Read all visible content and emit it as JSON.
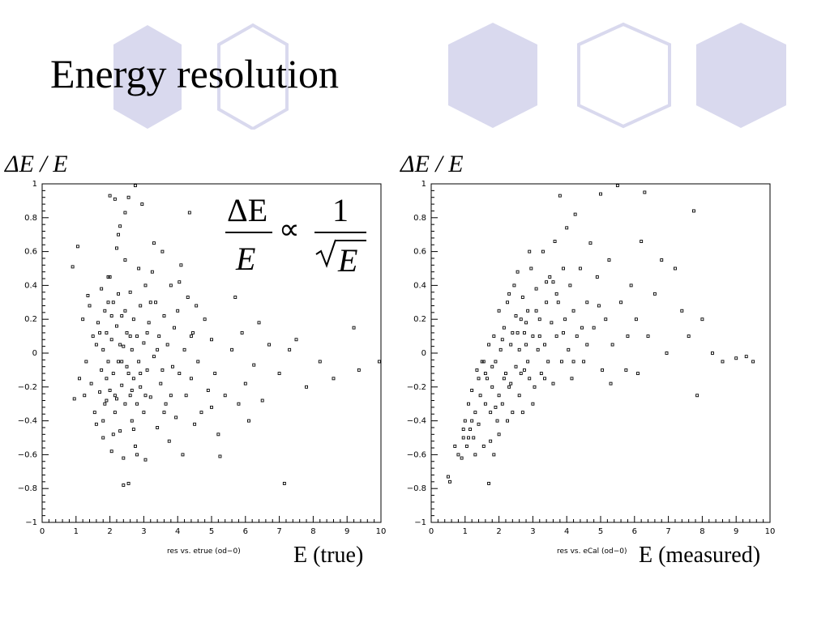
{
  "title": "Energy resolution",
  "formula": {
    "numerator_left": "ΔE",
    "denominator_left": "E",
    "proportional": "∝",
    "numerator_right": "1",
    "denominator_right": "E"
  },
  "colors": {
    "hex_fill": "#d9d9ee",
    "hex_stroke": "#d9d9ee",
    "points": "#000000"
  },
  "chart_data": [
    {
      "type": "scatter",
      "ylabel": "ΔE / E",
      "xlabel": "E (true)",
      "caption": "res vs. etrue (od−0)",
      "xlim": [
        0,
        10
      ],
      "ylim": [
        -1,
        1
      ],
      "xticks": [
        "0",
        "1",
        "2",
        "3",
        "4",
        "5",
        "6",
        "7",
        "8",
        "9",
        "10"
      ],
      "yticks": [
        "1",
        "0.8",
        "0.6",
        "0.4",
        "0.2",
        "0",
        "−0.2",
        "−0.4",
        "−0.6",
        "−0.8",
        "−1"
      ],
      "points": [
        [
          0.9,
          0.51
        ],
        [
          1.05,
          0.63
        ],
        [
          1.2,
          0.2
        ],
        [
          1.1,
          -0.15
        ],
        [
          0.95,
          -0.27
        ],
        [
          1.3,
          -0.05
        ],
        [
          1.35,
          0.34
        ],
        [
          1.4,
          0.28
        ],
        [
          1.45,
          -0.18
        ],
        [
          1.5,
          0.1
        ],
        [
          1.55,
          -0.35
        ],
        [
          1.6,
          -0.42
        ],
        [
          1.65,
          0.18
        ],
        [
          1.7,
          -0.23
        ],
        [
          1.75,
          0.38
        ],
        [
          1.75,
          -0.1
        ],
        [
          1.8,
          0.02
        ],
        [
          1.8,
          -0.5
        ],
        [
          1.85,
          0.25
        ],
        [
          1.85,
          -0.3
        ],
        [
          1.9,
          0.12
        ],
        [
          1.9,
          -0.15
        ],
        [
          1.95,
          -0.05
        ],
        [
          1.95,
          0.45
        ],
        [
          2.0,
          0.93
        ],
        [
          2.0,
          -0.22
        ],
        [
          2.05,
          0.08
        ],
        [
          2.05,
          -0.58
        ],
        [
          2.1,
          0.3
        ],
        [
          2.1,
          -0.12
        ],
        [
          2.15,
          0.91
        ],
        [
          2.15,
          -0.35
        ],
        [
          2.2,
          0.16
        ],
        [
          2.2,
          -0.27
        ],
        [
          2.25,
          -0.05
        ],
        [
          2.25,
          0.7
        ],
        [
          2.3,
          0.75
        ],
        [
          2.3,
          -0.46
        ],
        [
          2.35,
          0.22
        ],
        [
          2.35,
          -0.19
        ],
        [
          2.4,
          0.04
        ],
        [
          2.4,
          -0.62
        ],
        [
          2.45,
          0.55
        ],
        [
          2.45,
          -0.3
        ],
        [
          2.5,
          0.12
        ],
        [
          2.5,
          -0.08
        ],
        [
          2.55,
          0.92
        ],
        [
          2.55,
          -0.77
        ],
        [
          2.6,
          -0.25
        ],
        [
          2.6,
          0.36
        ],
        [
          2.65,
          0.02
        ],
        [
          2.65,
          -0.4
        ],
        [
          2.7,
          0.2
        ],
        [
          2.7,
          -0.15
        ],
        [
          2.75,
          0.99
        ],
        [
          2.75,
          -0.55
        ],
        [
          2.8,
          0.1
        ],
        [
          2.8,
          -0.3
        ],
        [
          2.85,
          0.5
        ],
        [
          2.85,
          -0.05
        ],
        [
          2.9,
          0.28
        ],
        [
          2.9,
          -0.2
        ],
        [
          2.95,
          0.88
        ],
        [
          3.0,
          0.06
        ],
        [
          3.0,
          -0.35
        ],
        [
          3.05,
          0.4
        ],
        [
          3.05,
          -0.63
        ],
        [
          3.1,
          -0.1
        ],
        [
          3.15,
          0.18
        ],
        [
          3.2,
          -0.26
        ],
        [
          3.25,
          0.48
        ],
        [
          3.3,
          -0.02
        ],
        [
          3.35,
          0.3
        ],
        [
          3.4,
          -0.44
        ],
        [
          3.45,
          0.1
        ],
        [
          3.5,
          -0.18
        ],
        [
          3.55,
          0.6
        ],
        [
          3.6,
          0.22
        ],
        [
          3.65,
          -0.3
        ],
        [
          3.7,
          0.05
        ],
        [
          3.75,
          -0.52
        ],
        [
          3.8,
          0.4
        ],
        [
          3.85,
          -0.08
        ],
        [
          3.9,
          0.15
        ],
        [
          3.95,
          -0.38
        ],
        [
          4.0,
          0.25
        ],
        [
          4.05,
          -0.12
        ],
        [
          4.1,
          0.52
        ],
        [
          4.15,
          -0.6
        ],
        [
          4.2,
          0.02
        ],
        [
          4.25,
          -0.25
        ],
        [
          4.3,
          0.33
        ],
        [
          4.35,
          0.83
        ],
        [
          4.4,
          -0.15
        ],
        [
          4.45,
          0.12
        ],
        [
          4.5,
          -0.42
        ],
        [
          4.55,
          0.28
        ],
        [
          4.6,
          -0.05
        ],
        [
          4.7,
          -0.35
        ],
        [
          4.8,
          0.2
        ],
        [
          4.9,
          -0.22
        ],
        [
          5.0,
          0.08
        ],
        [
          5.1,
          -0.12
        ],
        [
          5.2,
          -0.48
        ],
        [
          5.25,
          -0.61
        ],
        [
          5.4,
          -0.25
        ],
        [
          5.6,
          0.02
        ],
        [
          5.7,
          0.33
        ],
        [
          5.8,
          -0.3
        ],
        [
          5.9,
          0.12
        ],
        [
          6.0,
          -0.18
        ],
        [
          6.1,
          -0.4
        ],
        [
          6.25,
          -0.07
        ],
        [
          6.4,
          0.18
        ],
        [
          6.5,
          -0.28
        ],
        [
          6.7,
          0.05
        ],
        [
          7.0,
          -0.12
        ],
        [
          7.15,
          -0.77
        ],
        [
          7.3,
          0.02
        ],
        [
          7.5,
          0.08
        ],
        [
          7.8,
          -0.2
        ],
        [
          8.2,
          -0.05
        ],
        [
          8.6,
          -0.15
        ],
        [
          9.2,
          0.15
        ],
        [
          9.35,
          -0.1
        ],
        [
          9.95,
          -0.05
        ],
        [
          1.25,
          -0.25
        ],
        [
          1.6,
          0.05
        ],
        [
          2.0,
          0.45
        ],
        [
          2.2,
          0.62
        ],
        [
          2.45,
          0.83
        ],
        [
          1.8,
          -0.4
        ],
        [
          2.1,
          -0.48
        ],
        [
          2.7,
          -0.45
        ],
        [
          3.2,
          0.3
        ],
        [
          3.4,
          0.02
        ],
        [
          3.8,
          -0.25
        ],
        [
          2.3,
          0.05
        ],
        [
          2.55,
          -0.12
        ],
        [
          2.9,
          -0.12
        ],
        [
          2.35,
          -0.05
        ],
        [
          2.05,
          0.22
        ],
        [
          1.7,
          0.12
        ],
        [
          2.6,
          0.1
        ],
        [
          3.1,
          0.12
        ],
        [
          3.55,
          -0.1
        ],
        [
          2.15,
          -0.25
        ],
        [
          2.65,
          -0.22
        ],
        [
          3.05,
          -0.25
        ],
        [
          1.9,
          -0.28
        ],
        [
          4.05,
          0.42
        ],
        [
          4.4,
          0.1
        ],
        [
          5.0,
          -0.32
        ],
        [
          3.6,
          -0.35
        ],
        [
          2.8,
          -0.6
        ],
        [
          2.4,
          -0.78
        ],
        [
          2.25,
          0.35
        ],
        [
          2.45,
          0.25
        ],
        [
          1.95,
          0.3
        ],
        [
          3.3,
          0.65
        ]
      ]
    },
    {
      "type": "scatter",
      "ylabel": "ΔE / E",
      "xlabel": "E (measured)",
      "caption": "res vs. eCal (od−0)",
      "xlim": [
        0,
        10
      ],
      "ylim": [
        -1,
        1
      ],
      "xticks": [
        "0",
        "1",
        "2",
        "3",
        "4",
        "5",
        "6",
        "7",
        "8",
        "9",
        "10"
      ],
      "yticks": [
        "1",
        "0.8",
        "0.6",
        "0.4",
        "0.2",
        "0",
        "−0.2",
        "−0.4",
        "−0.6",
        "−0.8",
        "−1"
      ],
      "points": [
        [
          0.5,
          -0.73
        ],
        [
          0.55,
          -0.76
        ],
        [
          0.7,
          -0.55
        ],
        [
          0.8,
          -0.6
        ],
        [
          0.9,
          -0.62
        ],
        [
          0.95,
          -0.5
        ],
        [
          1.0,
          -0.4
        ],
        [
          1.05,
          -0.55
        ],
        [
          1.1,
          -0.3
        ],
        [
          1.15,
          -0.45
        ],
        [
          1.2,
          -0.22
        ],
        [
          1.25,
          -0.5
        ],
        [
          1.3,
          -0.35
        ],
        [
          1.35,
          -0.1
        ],
        [
          1.4,
          -0.42
        ],
        [
          1.45,
          -0.25
        ],
        [
          1.5,
          -0.05
        ],
        [
          1.55,
          -0.55
        ],
        [
          1.6,
          -0.3
        ],
        [
          1.65,
          -0.15
        ],
        [
          1.7,
          0.05
        ],
        [
          1.7,
          -0.77
        ],
        [
          1.75,
          -0.35
        ],
        [
          1.8,
          -0.2
        ],
        [
          1.85,
          0.1
        ],
        [
          1.85,
          -0.6
        ],
        [
          1.9,
          -0.05
        ],
        [
          1.95,
          -0.4
        ],
        [
          2.0,
          0.25
        ],
        [
          2.0,
          -0.25
        ],
        [
          2.05,
          0.02
        ],
        [
          2.1,
          -0.3
        ],
        [
          2.15,
          0.15
        ],
        [
          2.2,
          -0.12
        ],
        [
          2.25,
          0.3
        ],
        [
          2.3,
          -0.2
        ],
        [
          2.35,
          0.05
        ],
        [
          2.4,
          -0.35
        ],
        [
          2.45,
          0.4
        ],
        [
          2.5,
          -0.08
        ],
        [
          2.55,
          0.12
        ],
        [
          2.6,
          -0.25
        ],
        [
          2.65,
          0.2
        ],
        [
          2.7,
          0.33
        ],
        [
          2.75,
          -0.1
        ],
        [
          2.8,
          0.05
        ],
        [
          2.85,
          0.25
        ],
        [
          2.9,
          -0.15
        ],
        [
          2.95,
          0.5
        ],
        [
          3.0,
          0.1
        ],
        [
          3.05,
          -0.2
        ],
        [
          3.1,
          0.38
        ],
        [
          3.15,
          0.02
        ],
        [
          3.2,
          0.2
        ],
        [
          3.25,
          -0.12
        ],
        [
          3.3,
          0.6
        ],
        [
          3.35,
          0.05
        ],
        [
          3.4,
          0.3
        ],
        [
          3.45,
          -0.05
        ],
        [
          3.5,
          0.45
        ],
        [
          3.55,
          0.18
        ],
        [
          3.6,
          -0.18
        ],
        [
          3.65,
          0.66
        ],
        [
          3.7,
          0.1
        ],
        [
          3.75,
          0.3
        ],
        [
          3.8,
          0.93
        ],
        [
          3.85,
          -0.05
        ],
        [
          3.9,
          0.5
        ],
        [
          3.95,
          0.2
        ],
        [
          4.0,
          0.74
        ],
        [
          4.05,
          0.02
        ],
        [
          4.1,
          0.4
        ],
        [
          4.15,
          -0.15
        ],
        [
          4.2,
          0.25
        ],
        [
          4.25,
          0.82
        ],
        [
          4.3,
          0.1
        ],
        [
          4.4,
          0.5
        ],
        [
          4.5,
          -0.05
        ],
        [
          4.6,
          0.3
        ],
        [
          4.7,
          0.65
        ],
        [
          4.8,
          0.15
        ],
        [
          4.9,
          0.45
        ],
        [
          5.0,
          0.94
        ],
        [
          5.05,
          -0.1
        ],
        [
          5.15,
          0.2
        ],
        [
          5.25,
          0.55
        ],
        [
          5.35,
          0.05
        ],
        [
          5.5,
          0.99
        ],
        [
          5.6,
          0.3
        ],
        [
          5.75,
          -0.1
        ],
        [
          5.9,
          0.4
        ],
        [
          6.05,
          0.2
        ],
        [
          6.2,
          0.66
        ],
        [
          6.3,
          0.95
        ],
        [
          6.4,
          0.1
        ],
        [
          6.6,
          0.35
        ],
        [
          6.8,
          0.55
        ],
        [
          6.95,
          0.0
        ],
        [
          7.2,
          0.5
        ],
        [
          7.4,
          0.25
        ],
        [
          7.6,
          0.1
        ],
        [
          7.75,
          0.84
        ],
        [
          7.85,
          -0.25
        ],
        [
          8.0,
          0.2
        ],
        [
          8.3,
          0.0
        ],
        [
          8.6,
          -0.05
        ],
        [
          9.0,
          -0.03
        ],
        [
          9.3,
          -0.02
        ],
        [
          9.5,
          -0.05
        ],
        [
          1.6,
          -0.12
        ],
        [
          1.8,
          -0.08
        ],
        [
          2.1,
          0.08
        ],
        [
          2.35,
          -0.18
        ],
        [
          2.6,
          0.02
        ],
        [
          2.85,
          -0.05
        ],
        [
          3.2,
          0.1
        ],
        [
          1.4,
          -0.15
        ],
        [
          1.9,
          -0.32
        ],
        [
          2.25,
          -0.4
        ],
        [
          2.5,
          0.22
        ],
        [
          2.75,
          0.12
        ],
        [
          3.0,
          -0.3
        ],
        [
          3.35,
          -0.15
        ],
        [
          3.7,
          0.35
        ],
        [
          4.2,
          -0.05
        ],
        [
          1.55,
          -0.05
        ],
        [
          2.0,
          -0.48
        ],
        [
          2.7,
          -0.35
        ],
        [
          3.1,
          0.25
        ],
        [
          3.6,
          0.42
        ],
        [
          4.45,
          0.15
        ],
        [
          4.95,
          0.28
        ],
        [
          5.3,
          -0.18
        ],
        [
          5.8,
          0.1
        ],
        [
          6.1,
          -0.12
        ],
        [
          2.3,
          0.35
        ],
        [
          2.55,
          0.48
        ],
        [
          2.9,
          0.6
        ],
        [
          1.75,
          -0.52
        ],
        [
          1.3,
          -0.6
        ],
        [
          2.15,
          -0.15
        ],
        [
          2.4,
          0.12
        ],
        [
          2.8,
          0.18
        ],
        [
          3.4,
          0.42
        ],
        [
          3.9,
          0.12
        ],
        [
          4.6,
          0.05
        ],
        [
          1.2,
          -0.4
        ],
        [
          1.1,
          -0.5
        ],
        [
          0.95,
          -0.45
        ],
        [
          2.65,
          -0.12
        ]
      ]
    }
  ]
}
